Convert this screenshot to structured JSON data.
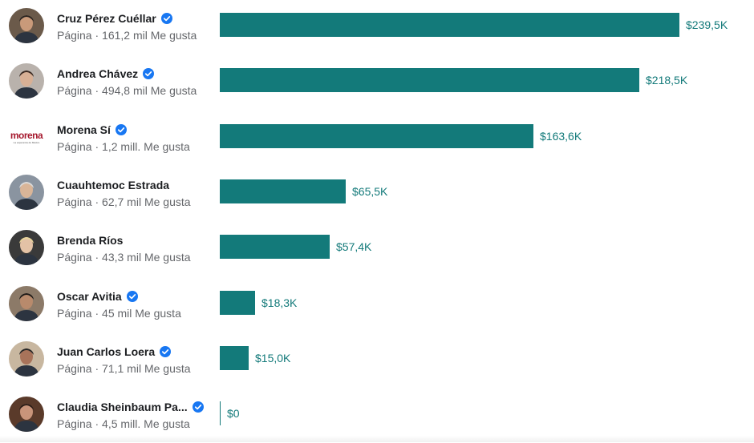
{
  "chart_data": {
    "type": "bar",
    "orientation": "horizontal",
    "categories": [
      "Cruz Pérez Cuéllar",
      "Andrea Chávez",
      "Morena Sí",
      "Cuauhtemoc Estrada",
      "Brenda Ríos",
      "Oscar Avitia",
      "Juan Carlos Loera",
      "Claudia Sheinbaum Pa..."
    ],
    "values": [
      239.5,
      218.5,
      163.6,
      65.5,
      57.4,
      18.3,
      15.0,
      0
    ],
    "value_labels": [
      "$239,5K",
      "$218,5K",
      "$163,6K",
      "$65,5K",
      "$57,4K",
      "$18,3K",
      "$15,0K",
      "$0"
    ],
    "xlim": [
      0,
      239.5
    ],
    "grid": false,
    "bar_color": "#137a7a"
  },
  "pages": [
    {
      "name": "Cruz Pérez Cuéllar",
      "subtitle": "Página · 161,2 mil Me gusta",
      "verified": true,
      "avatar": "portrait-icon"
    },
    {
      "name": "Andrea Chávez",
      "subtitle": "Página · 494,8 mil Me gusta",
      "verified": true,
      "avatar": "portrait-icon"
    },
    {
      "name": "Morena Sí",
      "subtitle": "Página · 1,2 mill. Me gusta",
      "verified": true,
      "avatar": "morena-logo",
      "logo_text": "morena",
      "logo_subtext": "La esperanza de México"
    },
    {
      "name": "Cuauhtemoc Estrada",
      "subtitle": "Página · 62,7 mil Me gusta",
      "verified": false,
      "avatar": "portrait-icon"
    },
    {
      "name": "Brenda Ríos",
      "subtitle": "Página · 43,3 mil Me gusta",
      "verified": false,
      "avatar": "portrait-icon"
    },
    {
      "name": "Oscar Avitia",
      "subtitle": "Página · 45 mil Me gusta",
      "verified": true,
      "avatar": "portrait-icon"
    },
    {
      "name": "Juan Carlos Loera",
      "subtitle": "Página · 71,1 mil Me gusta",
      "verified": true,
      "avatar": "portrait-icon"
    },
    {
      "name": "Claudia Sheinbaum Pa...",
      "subtitle": "Página · 4,5 mill. Me gusta",
      "verified": true,
      "avatar": "portrait-icon"
    }
  ],
  "colors": {
    "bar": "#137a7a",
    "value_text": "#137a7a",
    "name_text": "#1c1e21",
    "subtitle_text": "#65676b",
    "verified_badge": "#1877f2",
    "morena_red": "#a6192e"
  },
  "icons": {
    "verified": "verified-badge-icon"
  }
}
